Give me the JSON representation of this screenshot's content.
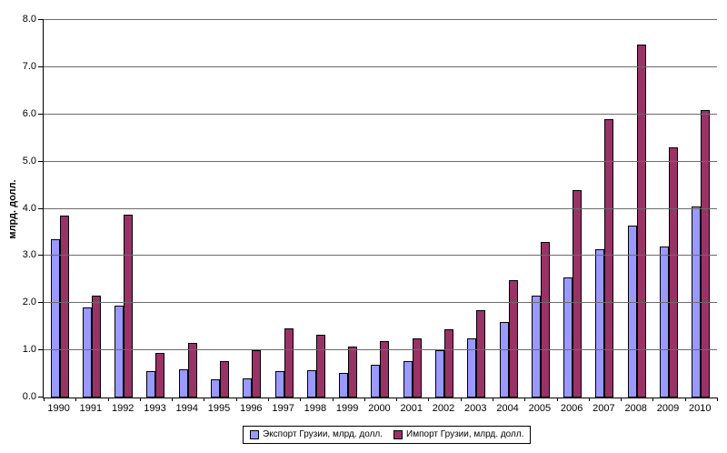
{
  "chart_data": {
    "type": "bar",
    "title": "",
    "xlabel": "",
    "ylabel": "млрд. долл.",
    "ylim": [
      0,
      8
    ],
    "ytick_step": 1.0,
    "ytick_decimals": 1,
    "grid": true,
    "legend_position": "bottom",
    "gridline_color": "#6b6b6b",
    "axis_color": "#000000",
    "background_color": "#ffffff",
    "categories": [
      "1990",
      "1991",
      "1992",
      "1993",
      "1994",
      "1995",
      "1996",
      "1997",
      "1998",
      "1999",
      "2000",
      "2001",
      "2002",
      "2003",
      "2004",
      "2005",
      "2006",
      "2007",
      "2008",
      "2009",
      "2010"
    ],
    "series": [
      {
        "name": "Экспорт Грузии, млрд. долл.",
        "color": "#9999FF",
        "values": [
          3.35,
          1.9,
          1.95,
          0.55,
          0.6,
          0.38,
          0.4,
          0.55,
          0.58,
          0.53,
          0.7,
          0.78,
          1.0,
          1.25,
          1.6,
          2.15,
          2.55,
          3.15,
          3.65,
          3.2,
          4.05
        ]
      },
      {
        "name": "Импорт Грузии, млрд. долл.",
        "color": "#993366",
        "values": [
          3.85,
          2.15,
          3.87,
          0.95,
          1.15,
          0.78,
          1.0,
          1.47,
          1.33,
          1.07,
          1.2,
          1.25,
          1.45,
          1.85,
          2.48,
          3.3,
          4.4,
          5.9,
          7.48,
          5.3,
          6.1
        ]
      }
    ]
  }
}
